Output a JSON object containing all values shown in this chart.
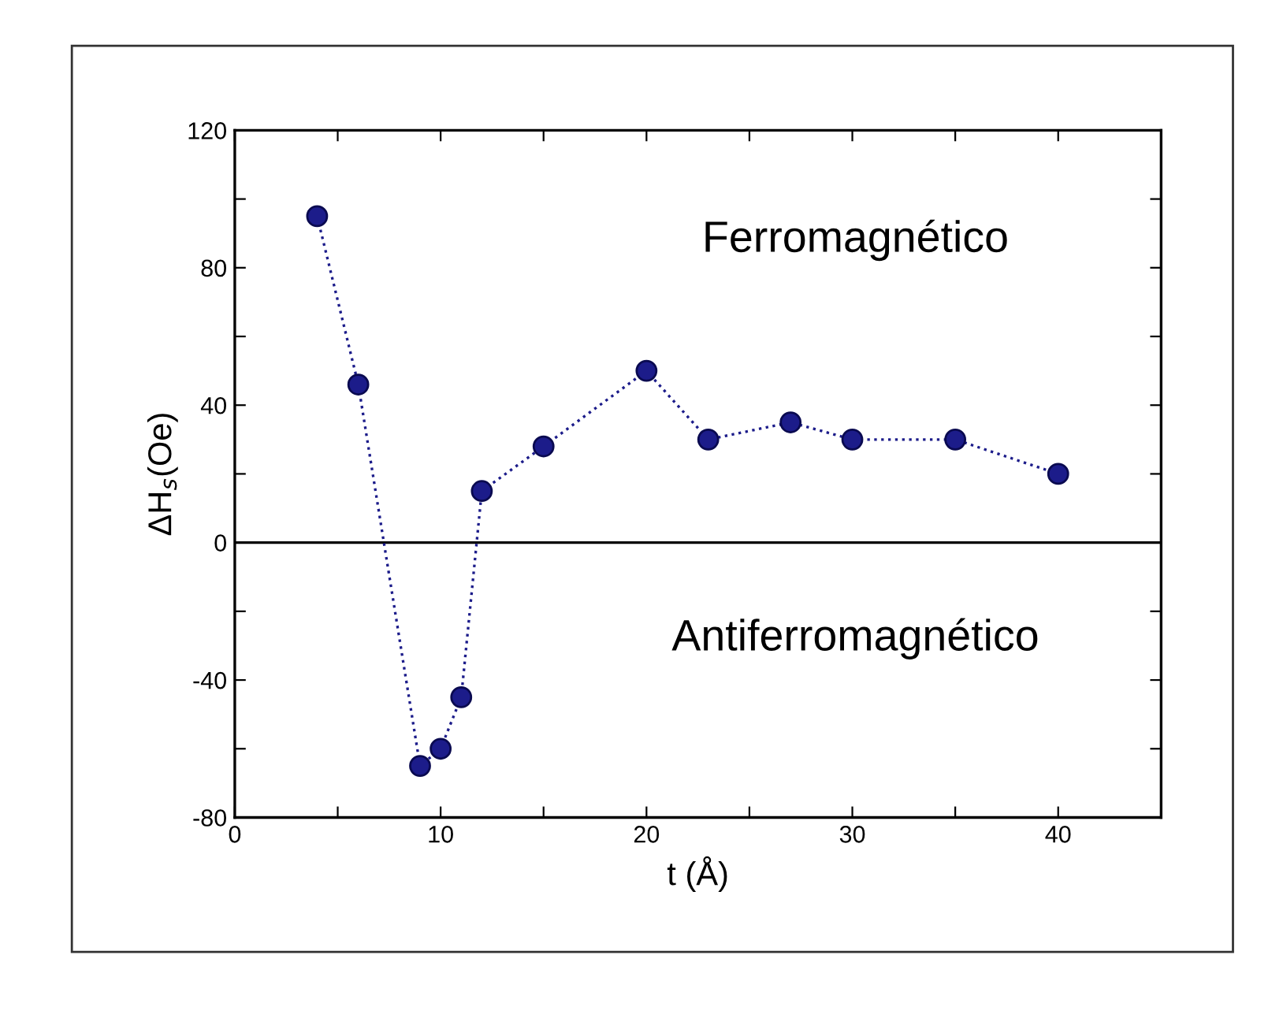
{
  "chart_data": {
    "type": "line",
    "xlabel": "t (Å)",
    "ylabel": "ΔH$_{s}$(Oe)",
    "x": [
      4,
      6,
      9,
      10,
      11,
      12,
      15,
      20,
      23,
      27,
      30,
      35,
      40
    ],
    "series": [
      {
        "color": "#1c1c8a",
        "values": [
          95,
          46,
          -65,
          -60,
          -45,
          15,
          28,
          50,
          30,
          35,
          30,
          30,
          20
        ]
      }
    ],
    "xlim": [
      0,
      45
    ],
    "ylim": [
      -80,
      120
    ],
    "xticks": [
      0,
      {
        "value": 5,
        "label": null
      },
      10,
      {
        "value": 15,
        "label": null
      },
      20,
      {
        "value": 25,
        "label": null
      },
      30,
      {
        "value": 35,
        "label": null
      },
      40
    ],
    "yticks": [
      -80,
      {
        "value": -60,
        "label": null
      },
      -40,
      {
        "value": -20,
        "label": null
      },
      0,
      {
        "value": 20,
        "label": null
      },
      40,
      {
        "value": 60,
        "label": null
      },
      80,
      {
        "value": 100,
        "label": null
      },
      120
    ],
    "ref_lines": [
      {
        "axis": "y",
        "value": 0,
        "color": "#000000",
        "line_style": "solid"
      }
    ],
    "annotations": [
      "Ferromagnético",
      "Antiferromagnético"
    ],
    "marker": "circle",
    "line_style": "dotted",
    "grid": false,
    "legend": false
  }
}
